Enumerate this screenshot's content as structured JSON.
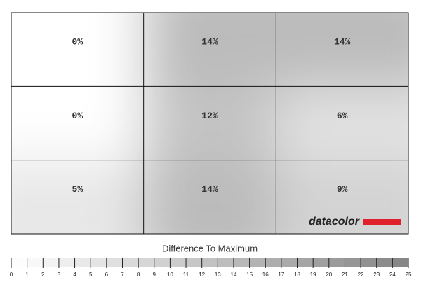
{
  "chart_data": {
    "type": "heatmap",
    "rows": 3,
    "columns": 3,
    "values": [
      [
        0,
        14,
        14
      ],
      [
        0,
        12,
        6
      ],
      [
        5,
        14,
        9
      ]
    ],
    "value_labels": [
      [
        "0%",
        "14%",
        "14%"
      ],
      [
        "0%",
        "12%",
        "6%"
      ],
      [
        "5%",
        "14%",
        "9%"
      ]
    ],
    "watermark": "datacolor",
    "colorbar": {
      "label": "Difference To Maximum",
      "lim": [
        0,
        25
      ],
      "ticks": [
        0,
        1,
        2,
        3,
        4,
        5,
        6,
        7,
        8,
        9,
        10,
        11,
        12,
        13,
        14,
        15,
        16,
        17,
        18,
        19,
        20,
        21,
        22,
        23,
        24,
        25
      ],
      "colors": [
        "#ffffff",
        "#858585"
      ]
    }
  }
}
